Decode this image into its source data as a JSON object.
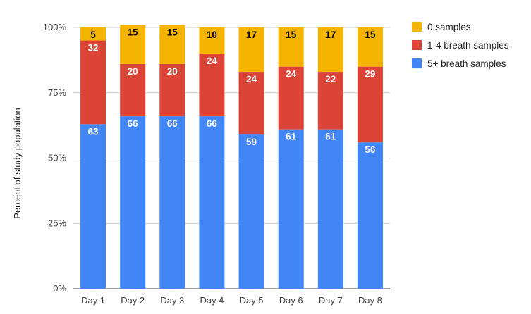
{
  "chart_data": {
    "type": "bar",
    "stacked": true,
    "percent": true,
    "categories": [
      "Day 1",
      "Day 2",
      "Day 3",
      "Day 4",
      "Day 5",
      "Day 6",
      "Day 7",
      "Day 8"
    ],
    "series": [
      {
        "name": "5+ breath samples",
        "color": "#4285f4",
        "label_color": "#ffffff",
        "values": [
          63,
          66,
          66,
          66,
          59,
          61,
          61,
          56
        ]
      },
      {
        "name": "1-4 breath samples",
        "color": "#db4437",
        "label_color": "#ffffff",
        "values": [
          32,
          20,
          20,
          24,
          24,
          24,
          22,
          29
        ]
      },
      {
        "name": "0 samples",
        "color": "#f4b400",
        "label_color": "#000000",
        "values": [
          5,
          15,
          15,
          10,
          17,
          15,
          17,
          15
        ]
      }
    ],
    "legend_order": [
      "0 samples",
      "1-4 breath samples",
      "5+ breath samples"
    ],
    "ylabel": "Percent of study population",
    "yticks": [
      "0%",
      "25%",
      "50%",
      "75%",
      "100%"
    ],
    "ylim": [
      0,
      100
    ],
    "legend_position": "right",
    "grid": true
  }
}
